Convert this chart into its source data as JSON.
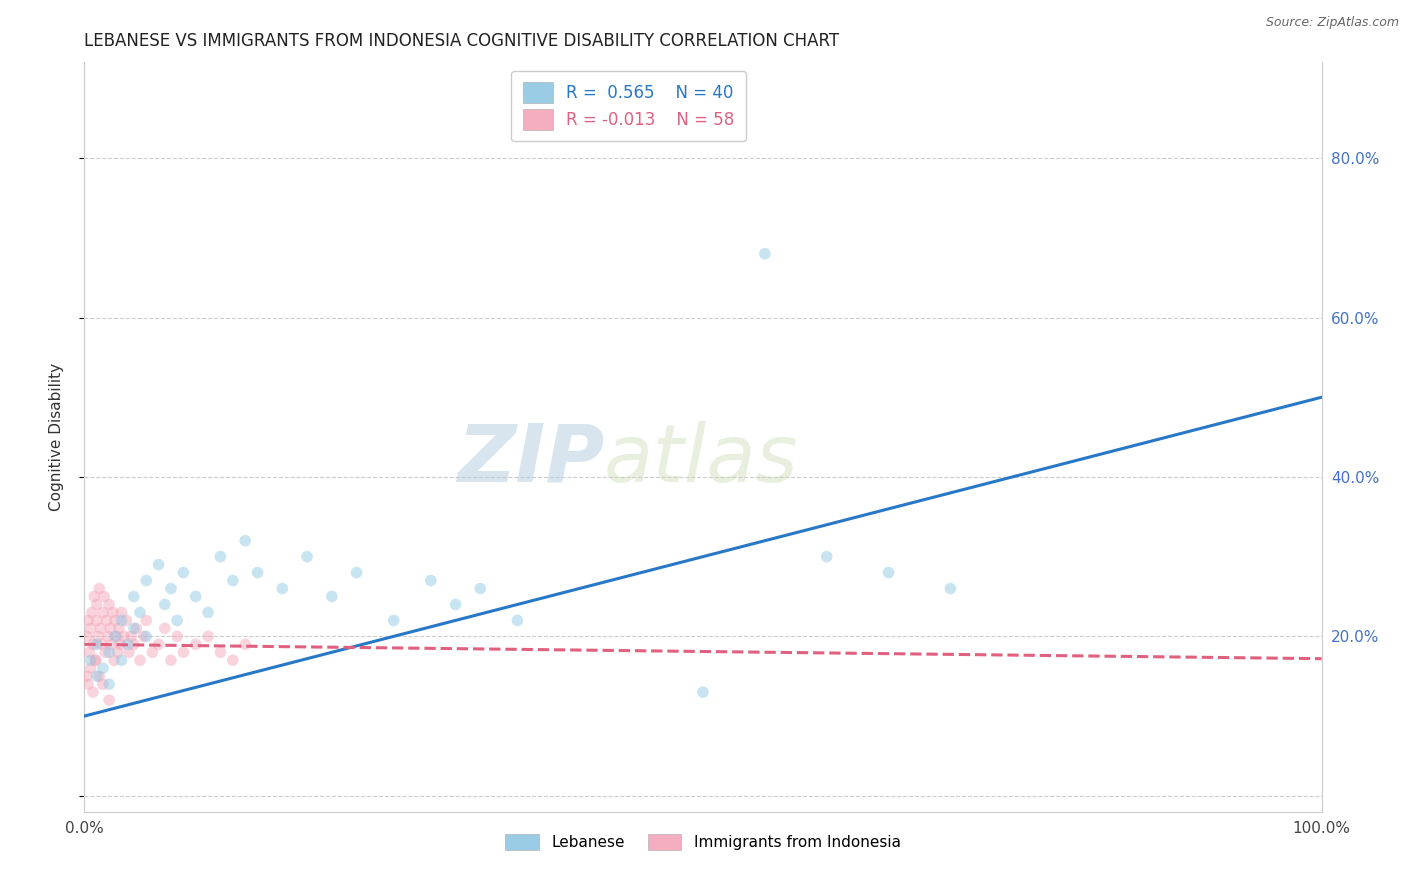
{
  "title": "LEBANESE VS IMMIGRANTS FROM INDONESIA COGNITIVE DISABILITY CORRELATION CHART",
  "source": "Source: ZipAtlas.com",
  "ylabel": "Cognitive Disability",
  "xlim": [
    0.0,
    1.0
  ],
  "ylim": [
    -0.02,
    0.92
  ],
  "x_ticks": [
    0.0,
    0.2,
    0.4,
    0.6,
    0.8,
    1.0
  ],
  "x_tick_labels": [
    "0.0%",
    "",
    "",
    "",
    "",
    "100.0%"
  ],
  "y_ticks": [
    0.0,
    0.2,
    0.4,
    0.6,
    0.8
  ],
  "y_tick_labels_right": [
    "",
    "20.0%",
    "40.0%",
    "60.0%",
    "80.0%"
  ],
  "legend_R1": "0.565",
  "legend_N1": "40",
  "legend_R2": "-0.013",
  "legend_N2": "58",
  "color_blue": "#89c4e1",
  "color_pink": "#f4a0b5",
  "line_blue": "#2878c8",
  "line_pink": "#e06080",
  "watermark_zip": "ZIP",
  "watermark_atlas": "atlas",
  "background_color": "#ffffff",
  "grid_color": "#cccccc",
  "blue_line_x0": 0.0,
  "blue_line_y0": 0.1,
  "blue_line_x1": 1.0,
  "blue_line_y1": 0.5,
  "pink_line_x0": 0.0,
  "pink_line_y0": 0.19,
  "pink_line_x1": 1.0,
  "pink_line_y1": 0.172,
  "blue_scatter_x": [
    0.005,
    0.01,
    0.01,
    0.015,
    0.02,
    0.02,
    0.025,
    0.03,
    0.03,
    0.035,
    0.04,
    0.04,
    0.045,
    0.05,
    0.05,
    0.06,
    0.065,
    0.07,
    0.075,
    0.08,
    0.09,
    0.1,
    0.11,
    0.12,
    0.13,
    0.14,
    0.16,
    0.18,
    0.2,
    0.22,
    0.25,
    0.28,
    0.3,
    0.32,
    0.35,
    0.6,
    0.65,
    0.7,
    0.5,
    0.55
  ],
  "blue_scatter_y": [
    0.17,
    0.15,
    0.19,
    0.16,
    0.18,
    0.14,
    0.2,
    0.17,
    0.22,
    0.19,
    0.21,
    0.25,
    0.23,
    0.2,
    0.27,
    0.29,
    0.24,
    0.26,
    0.22,
    0.28,
    0.25,
    0.23,
    0.3,
    0.27,
    0.32,
    0.28,
    0.26,
    0.3,
    0.25,
    0.28,
    0.22,
    0.27,
    0.24,
    0.26,
    0.22,
    0.3,
    0.28,
    0.26,
    0.13,
    0.68
  ],
  "pink_scatter_x": [
    0.002,
    0.003,
    0.004,
    0.005,
    0.006,
    0.007,
    0.008,
    0.009,
    0.01,
    0.01,
    0.011,
    0.012,
    0.013,
    0.014,
    0.015,
    0.016,
    0.017,
    0.018,
    0.019,
    0.02,
    0.021,
    0.022,
    0.023,
    0.024,
    0.025,
    0.026,
    0.027,
    0.028,
    0.029,
    0.03,
    0.032,
    0.034,
    0.036,
    0.038,
    0.04,
    0.042,
    0.045,
    0.048,
    0.05,
    0.055,
    0.06,
    0.065,
    0.07,
    0.075,
    0.08,
    0.09,
    0.1,
    0.11,
    0.12,
    0.13,
    0.002,
    0.003,
    0.005,
    0.007,
    0.009,
    0.012,
    0.015,
    0.02
  ],
  "pink_scatter_y": [
    0.2,
    0.22,
    0.18,
    0.21,
    0.23,
    0.19,
    0.25,
    0.17,
    0.24,
    0.22,
    0.2,
    0.26,
    0.21,
    0.19,
    0.23,
    0.25,
    0.18,
    0.22,
    0.2,
    0.24,
    0.21,
    0.19,
    0.23,
    0.17,
    0.22,
    0.2,
    0.18,
    0.21,
    0.19,
    0.23,
    0.2,
    0.22,
    0.18,
    0.2,
    0.19,
    0.21,
    0.17,
    0.2,
    0.22,
    0.18,
    0.19,
    0.21,
    0.17,
    0.2,
    0.18,
    0.19,
    0.2,
    0.18,
    0.17,
    0.19,
    0.15,
    0.14,
    0.16,
    0.13,
    0.17,
    0.15,
    0.14,
    0.12
  ],
  "title_fontsize": 12,
  "axis_fontsize": 11,
  "tick_fontsize": 11,
  "scatter_size": 70,
  "scatter_alpha": 0.45,
  "line_width": 2.2
}
